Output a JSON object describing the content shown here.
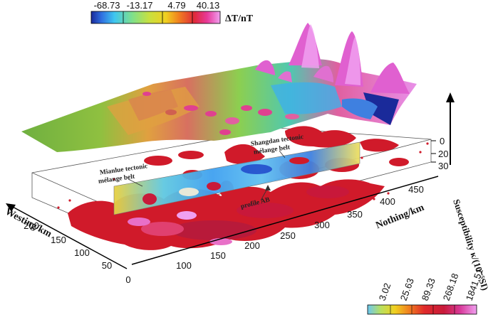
{
  "top_colorbar": {
    "ticks": [
      "-68.73",
      "-13.17",
      "4.79",
      "40.13"
    ],
    "unit": "ΔT/nT"
  },
  "bottom_colorbar": {
    "ticks": [
      "3.02",
      "25.63",
      "89.33",
      "268.18",
      "1841.51"
    ],
    "title": "Susceptibility κ/(10⁻⁵SI)"
  },
  "axes": {
    "westing_label": "Westing/km",
    "westing_ticks": [
      "0",
      "50",
      "100",
      "150",
      "200"
    ],
    "northing_label": "Nothing/km",
    "northing_ticks": [
      "100",
      "150",
      "200",
      "250",
      "300",
      "350",
      "400",
      "450"
    ],
    "depth_ticks": [
      "0",
      "20",
      "30"
    ]
  },
  "annotations": {
    "mianlue": "Mianlue tectonic",
    "mianlue_2": "mélange belt",
    "shangdan": "Shangdan tectonic",
    "shangdan_2": "mélange belt",
    "profile": "profile AB"
  },
  "colors": {
    "magnetic_ramp": [
      "#1a2a9a",
      "#2f6fe0",
      "#3fc6f0",
      "#7fe08a",
      "#c8e040",
      "#f0d020",
      "#f08020",
      "#e02a3a",
      "#e83a9a",
      "#f0a0f0"
    ],
    "susceptibility_ramp": [
      "#6cc8f0",
      "#b8e060",
      "#f0d020",
      "#f08020",
      "#e02a2a",
      "#c81a3a",
      "#d83a9a",
      "#f0a0f0"
    ]
  }
}
